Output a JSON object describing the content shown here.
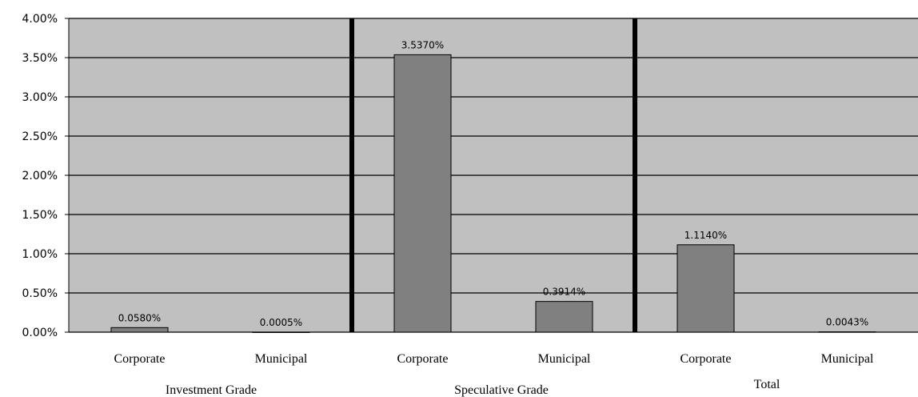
{
  "chart_data": {
    "type": "bar",
    "categories": [
      "Corporate",
      "Municipal",
      "Corporate",
      "Municipal",
      "Corporate",
      "Municipal"
    ],
    "groups": [
      "Investment Grade",
      "Speculative Grade",
      "Total"
    ],
    "values": [
      0.058,
      0.0005,
      3.537,
      0.3914,
      1.114,
      0.0043
    ],
    "data_labels": [
      "0.0580%",
      "0.0005%",
      "3.5370%",
      "0.3914%",
      "1.1140%",
      "0.0043%"
    ],
    "y_ticks": [
      "0.00%",
      "0.50%",
      "1.00%",
      "1.50%",
      "2.00%",
      "2.50%",
      "3.00%",
      "3.50%",
      "4.00%"
    ],
    "ylim": [
      0,
      4
    ],
    "y_unit": "%",
    "grid": true,
    "legend": "none",
    "colors": {
      "plot_background": "#c0c0c0",
      "bar_fill": "#808080",
      "bar_stroke": "#000000",
      "gridline": "#000000",
      "separator": "#000000"
    }
  }
}
